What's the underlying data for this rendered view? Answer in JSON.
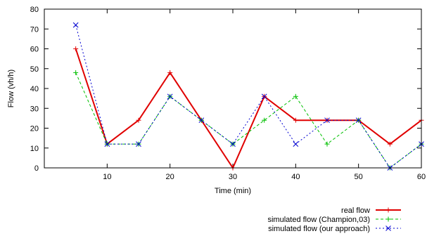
{
  "chart_data": {
    "type": "line",
    "xlabel": "Time (min)",
    "ylabel": "Flow (vh/h)",
    "xlim": [
      0,
      60
    ],
    "ylim": [
      0,
      80
    ],
    "xticks": [
      10,
      20,
      30,
      40,
      50,
      60
    ],
    "yticks": [
      0,
      10,
      20,
      30,
      40,
      50,
      60,
      70,
      80
    ],
    "legend_position": "bottom-right",
    "series": [
      {
        "name": "real flow",
        "color": "#e00000",
        "style": "solid",
        "marker": "plus",
        "x": [
          5,
          10,
          15,
          20,
          25,
          30,
          35,
          40,
          45,
          50,
          55,
          60
        ],
        "y": [
          60,
          12,
          24,
          48,
          24,
          0,
          36,
          24,
          24,
          24,
          12,
          24
        ]
      },
      {
        "name": "simulated flow (Champion,03)",
        "color": "#00c000",
        "style": "dashed",
        "marker": "plus",
        "x": [
          5,
          10,
          15,
          20,
          25,
          30,
          35,
          40,
          45,
          50,
          55,
          60
        ],
        "y": [
          48,
          12,
          12,
          36,
          24,
          12,
          24,
          36,
          12,
          24,
          0,
          12
        ]
      },
      {
        "name": "simulated flow (our approach)",
        "color": "#0000d0",
        "style": "dotted",
        "marker": "cross",
        "x": [
          5,
          10,
          15,
          20,
          25,
          30,
          35,
          40,
          45,
          50,
          55,
          60
        ],
        "y": [
          72,
          12,
          12,
          36,
          24,
          12,
          36,
          12,
          24,
          24,
          0,
          12
        ]
      }
    ]
  }
}
